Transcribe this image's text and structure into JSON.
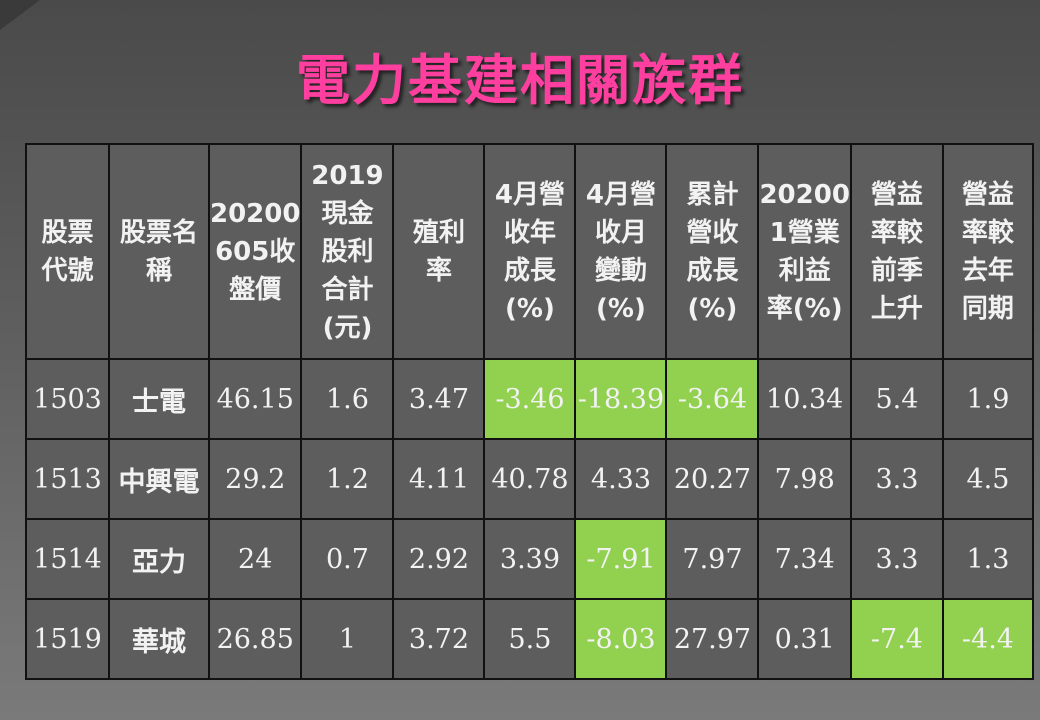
{
  "title": "電力基建相關族群",
  "table": {
    "headers": [
      "股票\n代號",
      "股票名\n稱",
      "20200\n605收\n盤價",
      "2019\n現金\n股利\n合計\n(元)",
      "殖利\n率",
      "4月營\n收年\n成長\n(%)",
      "4月營\n收月\n變動\n(%)",
      "累計\n營收\n成長\n(%)",
      "20200\n1營業\n利益\n率(%)",
      "營益\n率較\n前季\n上升",
      "營益\n率較\n去年\n同期"
    ],
    "rows": [
      [
        "1503",
        "士電",
        "46.15",
        "1.6",
        "3.47",
        "-3.46",
        "-18.39",
        "-3.64",
        "10.34",
        "5.4",
        "1.9"
      ],
      [
        "1513",
        "中興電",
        "29.2",
        "1.2",
        "4.11",
        "40.78",
        "4.33",
        "20.27",
        "7.98",
        "3.3",
        "4.5"
      ],
      [
        "1514",
        "亞力",
        "24",
        "0.7",
        "2.92",
        "3.39",
        "-7.91",
        "7.97",
        "7.34",
        "3.3",
        "1.3"
      ],
      [
        "1519",
        "華城",
        "26.85",
        "1",
        "3.72",
        "5.5",
        "-8.03",
        "27.97",
        "0.31",
        "-7.4",
        "-4.4"
      ]
    ],
    "highlight_color": "#92d050",
    "highlighted_cells": [
      [
        0,
        5
      ],
      [
        0,
        6
      ],
      [
        0,
        7
      ],
      [
        2,
        6
      ],
      [
        3,
        6
      ],
      [
        3,
        9
      ],
      [
        3,
        10
      ]
    ]
  }
}
